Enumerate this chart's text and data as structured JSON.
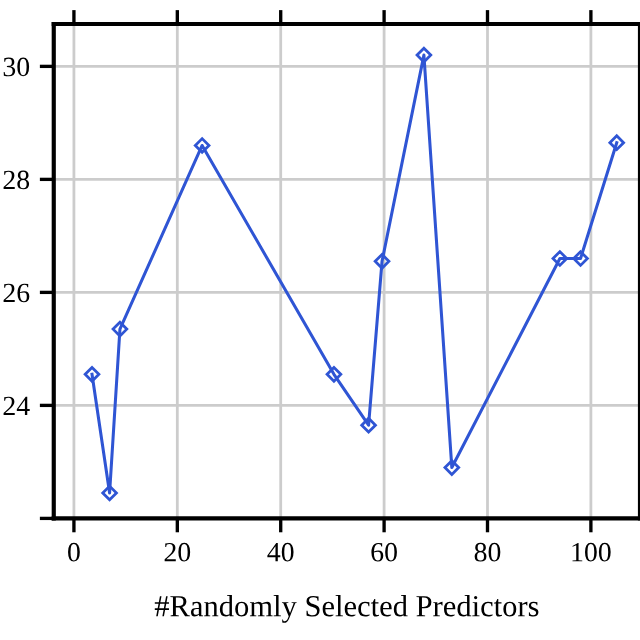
{
  "chart_data": {
    "type": "line",
    "xlabel": "#Randomly Selected Predictors",
    "x": [
      3.5,
      6.9,
      8.9,
      24.8,
      50.3,
      57,
      59.6,
      67.7,
      73.1,
      94,
      98,
      105
    ],
    "series": [
      {
        "color": "#2f55d4",
        "values": [
          24.55,
          22.45,
          25.35,
          28.6,
          24.55,
          23.65,
          26.55,
          30.2,
          22.9,
          26.6,
          26.6,
          28.65
        ]
      }
    ],
    "xlim": [
      -3.9,
      109.5
    ],
    "xticks": [
      0,
      20,
      40,
      60,
      80,
      100
    ],
    "ylim": [
      22,
      30.75
    ],
    "yticks": [
      {
        "value": 22,
        "label": null
      },
      24,
      26,
      28,
      30
    ],
    "grid": true,
    "marker": "diamond",
    "line_style": "solid"
  }
}
